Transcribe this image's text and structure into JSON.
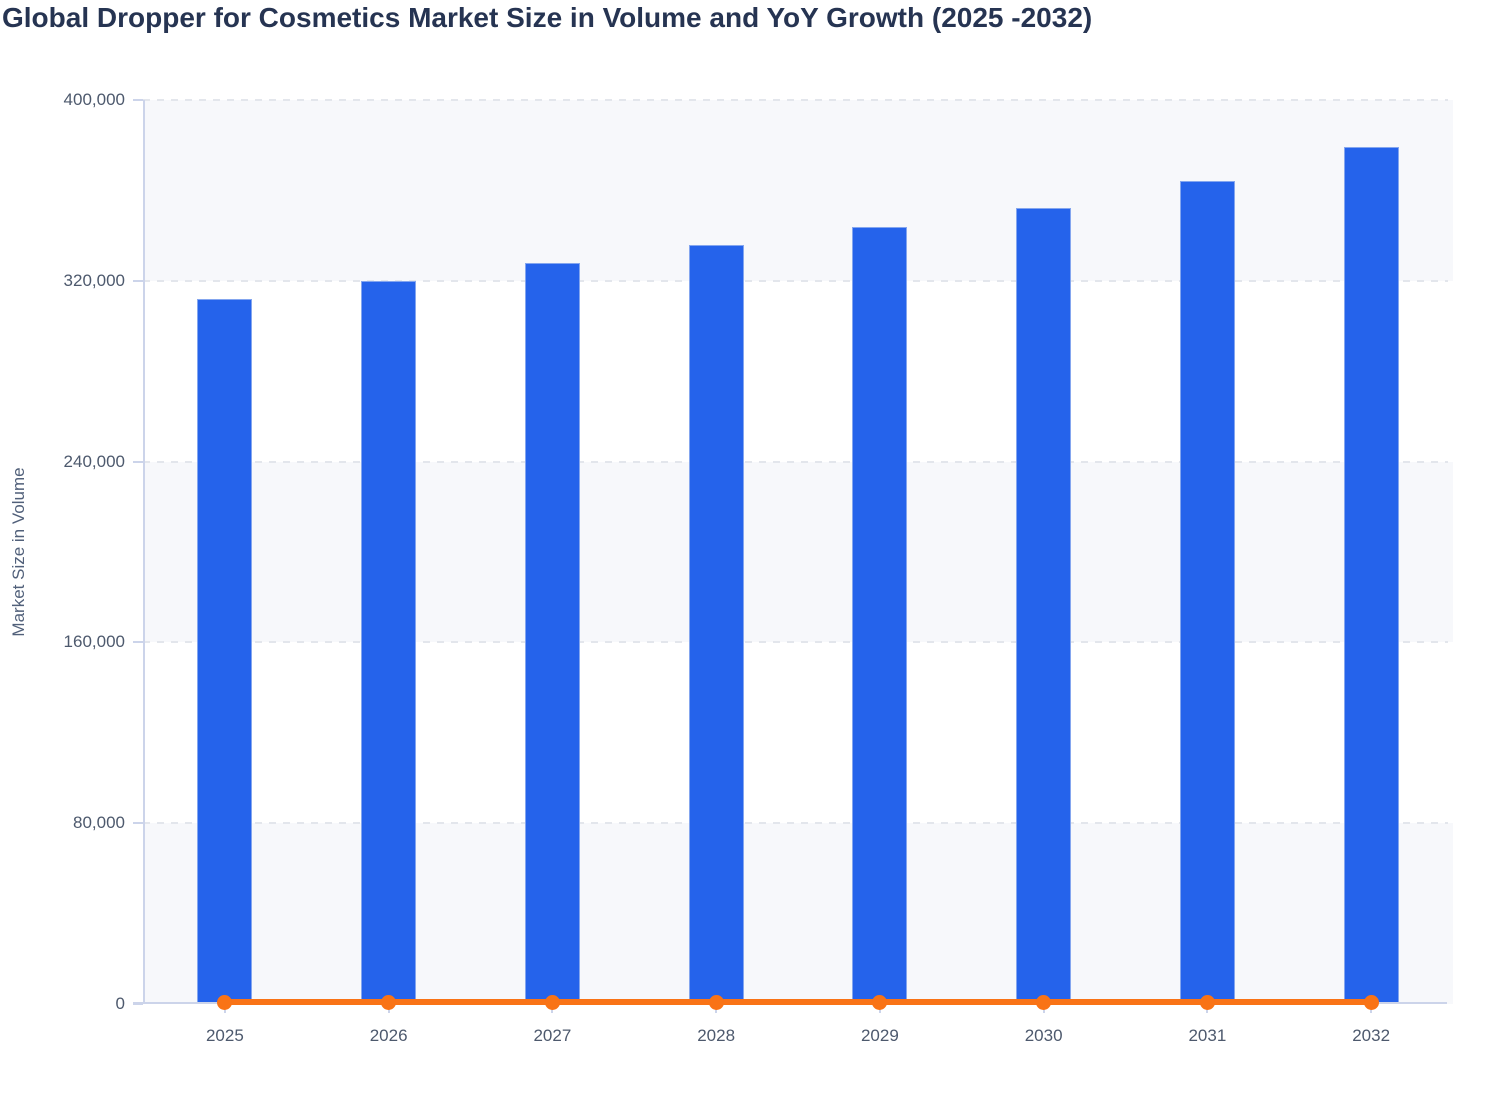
{
  "chart_data": {
    "type": "bar",
    "combo": "bar + line",
    "title": "Global Dropper for Cosmetics Market Size in Volume and YoY Growth (2025 -2032)",
    "xlabel": "",
    "ylabel": "Market Size in Volume",
    "categories": [
      "2025",
      "2026",
      "2027",
      "2028",
      "2029",
      "2030",
      "2031",
      "2032"
    ],
    "series": [
      {
        "name": "Market Size in Volume",
        "type": "bar",
        "color": "#2563eb",
        "values": [
          312000,
          320000,
          328000,
          336000,
          344000,
          352000,
          364000,
          379000
        ]
      },
      {
        "name": "YoY Growth",
        "type": "line",
        "color": "#f97316",
        "note": "plotted flat along the zero baseline with a round marker at each year; no secondary axis labels are visible",
        "values_as_plotted": [
          0,
          0,
          0,
          0,
          0,
          0,
          0,
          0
        ]
      }
    ],
    "ylim": [
      0,
      400000
    ],
    "yticks": [
      0,
      80000,
      160000,
      240000,
      320000,
      400000
    ],
    "ytick_labels": [
      "0",
      "80,000",
      "160,000",
      "240,000",
      "320,000",
      "400,000"
    ],
    "grid": "horizontal dashed gridlines, alternating tinted horizontal bands",
    "legend_position": "none",
    "style": {
      "title_color": "#263452",
      "axis_text_color": "#4d596d",
      "bar_fill": "#2563eb",
      "bar_stroke": "#8fadf0",
      "line_color": "#f97316",
      "band_fill": "#f7f8fb",
      "gridline_color": "#e3e6ec",
      "axis_line_color": "#ccd4ea"
    }
  }
}
